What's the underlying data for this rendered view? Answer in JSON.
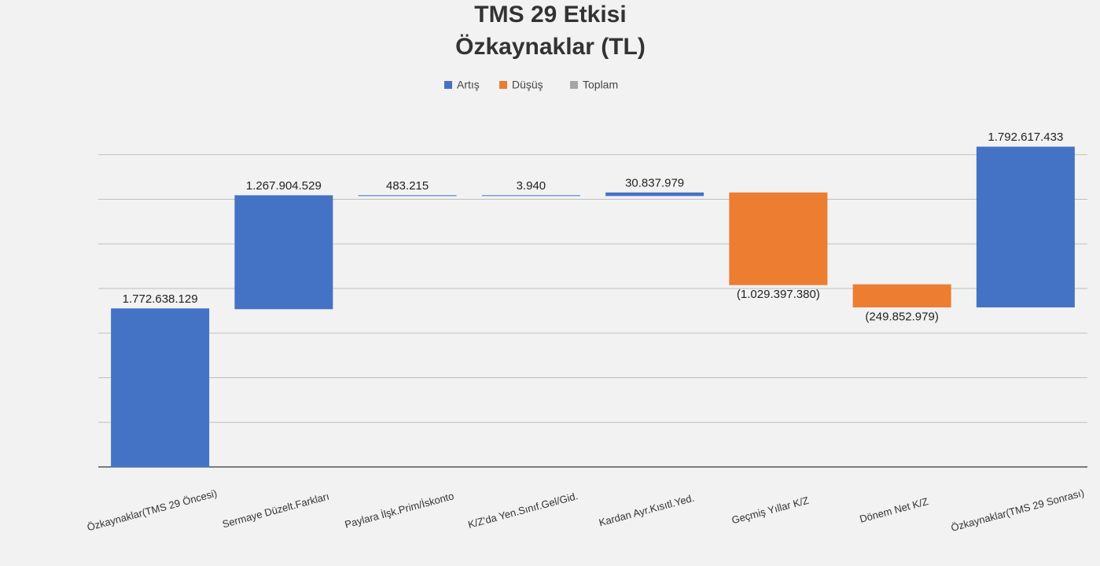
{
  "chart_data": {
    "type": "waterfall",
    "title": "TMS 29 Etkisi",
    "subtitle": "Özkaynaklar (TL)",
    "legend": [
      {
        "name": "Artış",
        "color": "#4472c4"
      },
      {
        "name": "Düşüş",
        "color": "#ed7d31"
      },
      {
        "name": "Toplam",
        "color": "#a5a5a5"
      }
    ],
    "categories": [
      "Özkaynaklar(TMS 29 Öncesi)",
      "Sermaye Düzelt.Farkları",
      "Paylara İlşk.Prim/İskonto",
      "K/Z'da Yen.Sınıf.Gel/Gid.",
      "Kardan Ayr.Kısıtl.Yed.",
      "Geçmiş Yıllar K/Z",
      "Dönem Net K/Z",
      "Özkaynaklar(TMS 29 Sonrası)"
    ],
    "values": [
      1772638129,
      1267904529,
      483215,
      3940,
      30837979,
      -1029397380,
      -249852979,
      1792617433
    ],
    "value_labels": [
      "1.772.638.129",
      "1.267.904.529",
      "483.215",
      "3.940",
      "30.837.979",
      "(1.029.397.380)",
      "(249.852.979)",
      "1.792.617.433"
    ],
    "ylim": [
      0,
      4000000000
    ],
    "yticks": [
      0,
      500000000,
      1000000000,
      1500000000,
      2000000000,
      2500000000,
      3000000000,
      3500000000
    ],
    "grid": true
  }
}
